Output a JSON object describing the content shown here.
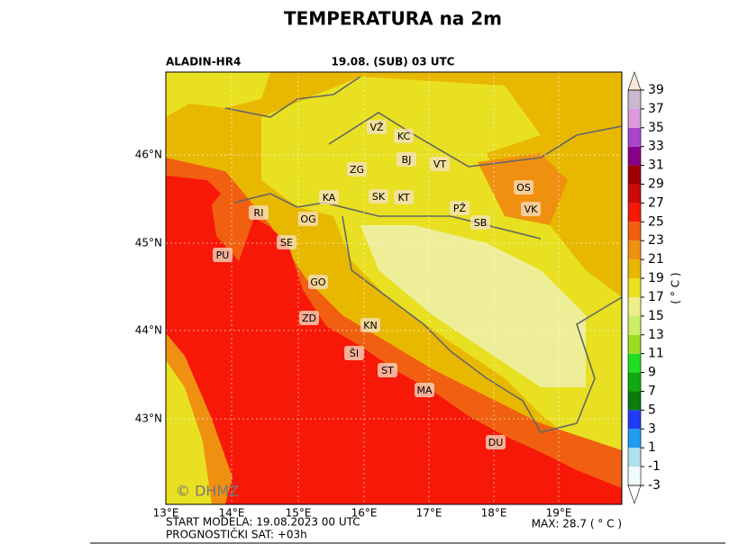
{
  "header": {
    "title": "TEMPERATURA na 2m",
    "model": "ALADIN-HR4",
    "valid": "19.08. (SUB) 03 UTC"
  },
  "map": {
    "lat_labels": [
      "46°N",
      "45°N",
      "44°N",
      "43°N"
    ],
    "lon_labels": [
      "13°E",
      "14°E",
      "15°E",
      "16°E",
      "17°E",
      "18°E",
      "19°E"
    ],
    "cities": [
      "VŽ",
      "KC",
      "BJ",
      "VT",
      "ZG",
      "OS",
      "KA",
      "SK",
      "KT",
      "PŽ",
      "VK",
      "RI",
      "OG",
      "SB",
      "SE",
      "PU",
      "GO",
      "ZD",
      "KN",
      "ŠI",
      "ST",
      "MA",
      "DU"
    ],
    "watermark": "© DHMZ"
  },
  "colorbar": {
    "ticks": [
      -3,
      -1,
      1,
      3,
      5,
      7,
      9,
      11,
      13,
      15,
      17,
      19,
      21,
      23,
      25,
      27,
      29,
      31,
      33,
      35,
      37,
      39
    ],
    "colors": [
      "#f0fbfb",
      "#b0e0ea",
      "#1e9cf0",
      "#1f3cf5",
      "#0a7d0a",
      "#10aa10",
      "#22dd22",
      "#99dd22",
      "#ccee66",
      "#eeee88",
      "#e8e020",
      "#e8b800",
      "#f09010",
      "#f06010",
      "#f81808",
      "#cc0a0a",
      "#a00000",
      "#880088",
      "#aa44cc",
      "#dd99dd",
      "#c8b8d0"
    ],
    "under_color": "#ffffff",
    "over_color": "#f8e8d8",
    "label": "( ° C )"
  },
  "footer": {
    "start": "START MODELA: 19.08.2023 00 UTC",
    "lead": "PROGNOSTIČKI SAT: +03h",
    "max": "MAX: 28.7 ( ° C )"
  }
}
